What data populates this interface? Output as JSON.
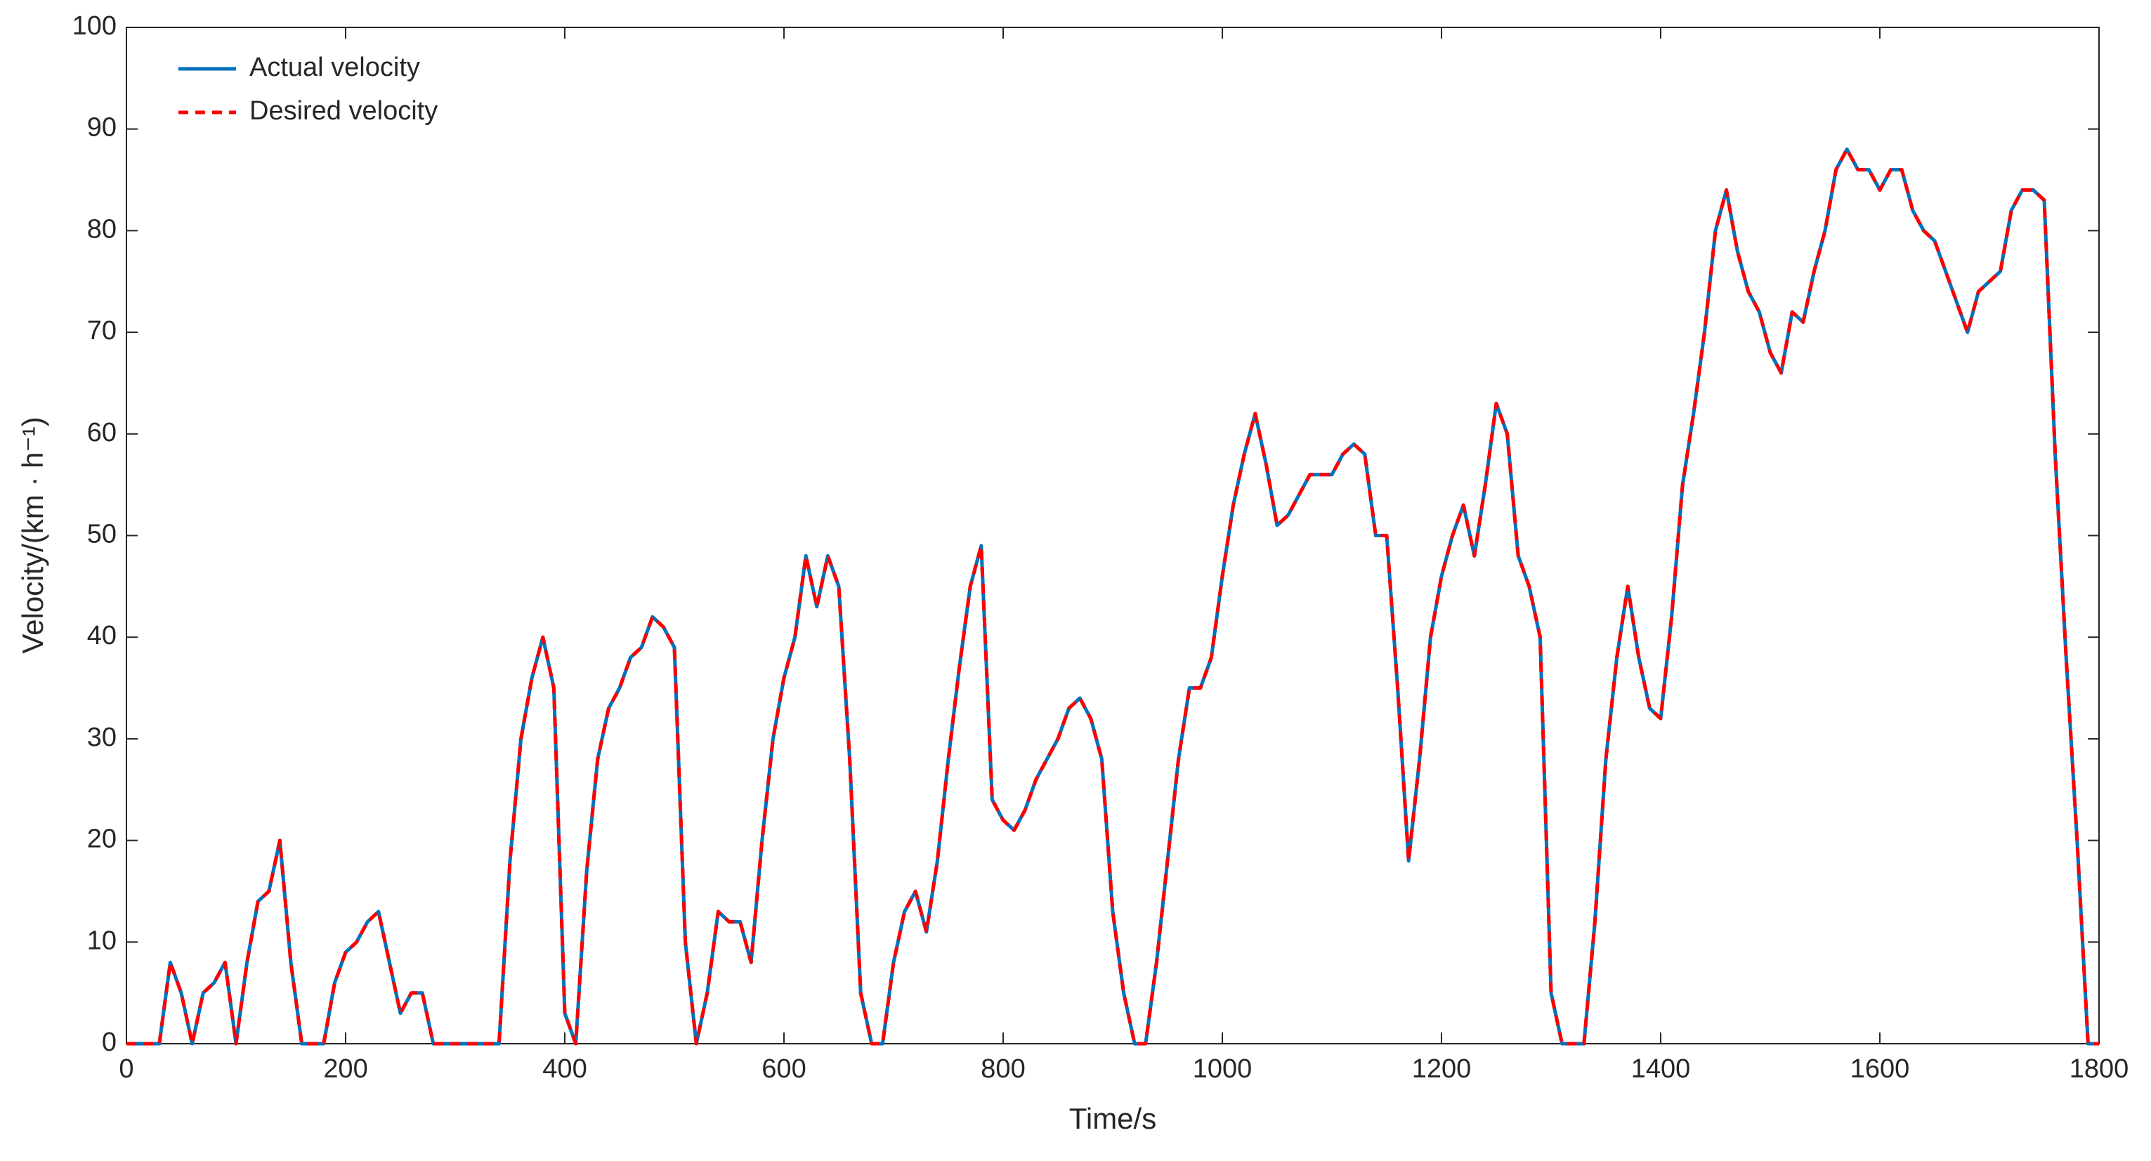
{
  "chart_data": {
    "type": "line",
    "xlabel": "Time/s",
    "ylabel": "Velocity/(km · h⁻¹)",
    "x": [
      0,
      10,
      20,
      30,
      40,
      50,
      60,
      70,
      80,
      90,
      100,
      110,
      120,
      130,
      140,
      150,
      160,
      170,
      180,
      190,
      200,
      210,
      220,
      230,
      240,
      250,
      260,
      270,
      280,
      290,
      300,
      310,
      320,
      330,
      340,
      350,
      360,
      370,
      380,
      390,
      400,
      410,
      420,
      430,
      440,
      450,
      460,
      470,
      480,
      490,
      500,
      510,
      520,
      530,
      540,
      550,
      560,
      570,
      580,
      590,
      600,
      610,
      620,
      630,
      640,
      650,
      660,
      670,
      680,
      690,
      700,
      710,
      720,
      730,
      740,
      750,
      760,
      770,
      780,
      790,
      800,
      810,
      820,
      830,
      840,
      850,
      860,
      870,
      880,
      890,
      900,
      910,
      920,
      930,
      940,
      950,
      960,
      970,
      980,
      990,
      1000,
      1010,
      1020,
      1030,
      1040,
      1050,
      1060,
      1070,
      1080,
      1090,
      1100,
      1110,
      1120,
      1130,
      1140,
      1150,
      1160,
      1170,
      1180,
      1190,
      1200,
      1210,
      1220,
      1230,
      1240,
      1250,
      1260,
      1270,
      1280,
      1290,
      1300,
      1310,
      1320,
      1330,
      1340,
      1350,
      1360,
      1370,
      1380,
      1390,
      1400,
      1410,
      1420,
      1430,
      1440,
      1450,
      1460,
      1470,
      1480,
      1490,
      1500,
      1510,
      1520,
      1530,
      1540,
      1550,
      1560,
      1570,
      1580,
      1590,
      1600,
      1610,
      1620,
      1630,
      1640,
      1650,
      1660,
      1670,
      1680,
      1690,
      1700,
      1710,
      1720,
      1730,
      1740,
      1750,
      1760,
      1770,
      1780,
      1790,
      1800
    ],
    "series": [
      {
        "name": "Actual velocity",
        "color": "#0072bd",
        "dashed": false,
        "values": [
          0,
          0,
          0,
          0,
          8,
          5,
          0,
          5,
          6,
          8,
          0,
          8,
          14,
          15,
          20,
          8,
          0,
          0,
          0,
          6,
          9,
          10,
          12,
          13,
          8,
          3,
          5,
          5,
          0,
          0,
          0,
          0,
          0,
          0,
          0,
          18,
          30,
          36,
          40,
          35,
          3,
          0,
          17,
          28,
          33,
          35,
          38,
          39,
          42,
          41,
          39,
          10,
          0,
          5,
          13,
          12,
          12,
          8,
          20,
          30,
          36,
          40,
          48,
          43,
          48,
          45,
          28,
          5,
          0,
          0,
          8,
          13,
          15,
          11,
          18,
          28,
          37,
          45,
          49,
          24,
          22,
          21,
          23,
          26,
          28,
          30,
          33,
          34,
          32,
          28,
          13,
          5,
          0,
          0,
          8,
          18,
          28,
          35,
          35,
          38,
          46,
          53,
          58,
          62,
          57,
          51,
          52,
          54,
          56,
          56,
          56,
          58,
          59,
          58,
          50,
          50,
          35,
          18,
          28,
          40,
          46,
          50,
          53,
          48,
          55,
          63,
          60,
          48,
          45,
          40,
          5,
          0,
          0,
          0,
          12,
          28,
          38,
          45,
          38,
          33,
          32,
          42,
          55,
          62,
          70,
          80,
          84,
          78,
          74,
          72,
          68,
          66,
          72,
          71,
          76,
          80,
          86,
          88,
          86,
          86,
          84,
          86,
          86,
          82,
          80,
          79,
          76,
          73,
          70,
          74,
          75,
          76,
          82,
          84,
          84,
          83,
          58,
          38,
          20,
          0,
          0
        ]
      },
      {
        "name": "Desired velocity",
        "color": "#ff0000",
        "dashed": true,
        "values": [
          0,
          0,
          0,
          0,
          8,
          5,
          0,
          5,
          6,
          8,
          0,
          8,
          14,
          15,
          20,
          8,
          0,
          0,
          0,
          6,
          9,
          10,
          12,
          13,
          8,
          3,
          5,
          5,
          0,
          0,
          0,
          0,
          0,
          0,
          0,
          18,
          30,
          36,
          40,
          35,
          3,
          0,
          17,
          28,
          33,
          35,
          38,
          39,
          42,
          41,
          39,
          10,
          0,
          5,
          13,
          12,
          12,
          8,
          20,
          30,
          36,
          40,
          48,
          43,
          48,
          45,
          28,
          5,
          0,
          0,
          8,
          13,
          15,
          11,
          18,
          28,
          37,
          45,
          49,
          24,
          22,
          21,
          23,
          26,
          28,
          30,
          33,
          34,
          32,
          28,
          13,
          5,
          0,
          0,
          8,
          18,
          28,
          35,
          35,
          38,
          46,
          53,
          58,
          62,
          57,
          51,
          52,
          54,
          56,
          56,
          56,
          58,
          59,
          58,
          50,
          50,
          35,
          18,
          28,
          40,
          46,
          50,
          53,
          48,
          55,
          63,
          60,
          48,
          45,
          40,
          5,
          0,
          0,
          0,
          12,
          28,
          38,
          45,
          38,
          33,
          32,
          42,
          55,
          62,
          70,
          80,
          84,
          78,
          74,
          72,
          68,
          66,
          72,
          71,
          76,
          80,
          86,
          88,
          86,
          86,
          84,
          86,
          86,
          82,
          80,
          79,
          76,
          73,
          70,
          74,
          75,
          76,
          82,
          84,
          84,
          83,
          58,
          38,
          20,
          0,
          0
        ]
      }
    ],
    "xlim": [
      0,
      1800
    ],
    "xticks": [
      0,
      200,
      400,
      600,
      800,
      1000,
      1200,
      1400,
      1600,
      1800
    ],
    "ylim": [
      0,
      100
    ],
    "yticks": [
      0,
      10,
      20,
      30,
      40,
      50,
      60,
      70,
      80,
      90,
      100
    ],
    "grid": false,
    "legend": "upper left"
  }
}
